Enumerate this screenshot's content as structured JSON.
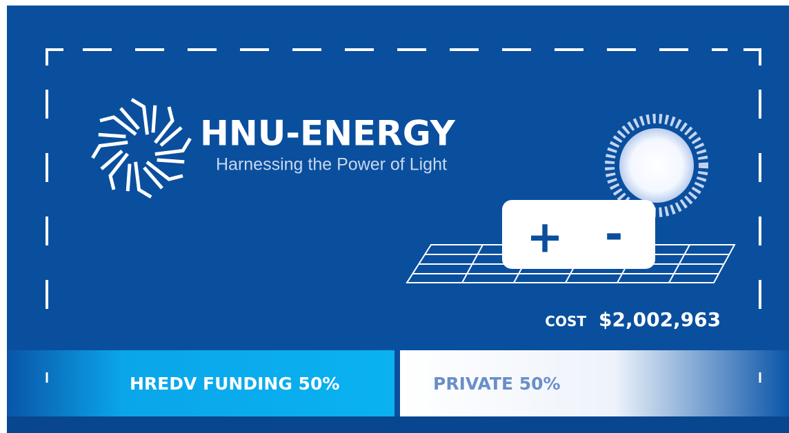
{
  "logo": {
    "name": "HNU-ENERGY",
    "tagline": "Harnessing the Power of Light"
  },
  "controls": {
    "increase": "+",
    "decrease": "-"
  },
  "cost": {
    "label": "cost",
    "value": "$2,002,963"
  },
  "funding": {
    "public": "HREDV FUNDING 50%",
    "private": "PRIVATE 50%"
  }
}
